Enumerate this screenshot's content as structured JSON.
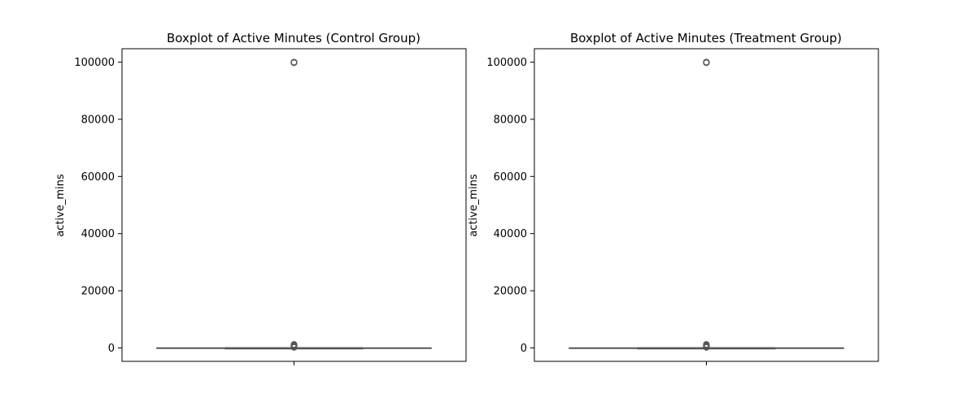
{
  "chart_data": [
    {
      "type": "box",
      "title": "Boxplot of Active Minutes (Control Group)",
      "xlabel": "",
      "ylabel": "active_mins",
      "ylim": [
        -4700,
        104700
      ],
      "yticks": [
        0,
        20000,
        40000,
        60000,
        80000,
        100000
      ],
      "ytick_labels": [
        "0",
        "20000",
        "40000",
        "60000",
        "80000",
        "100000"
      ],
      "box": {
        "q1": 0,
        "median": 0,
        "q3": 0,
        "whisker_low": 0,
        "whisker_high": 0
      },
      "outliers": [
        100000,
        99950,
        99900,
        99800,
        1200,
        1000,
        800,
        600,
        400,
        200
      ],
      "grid": false,
      "colors": {
        "box_edge": "#555555",
        "outlier_edge": "#555555",
        "axes": "#000000"
      }
    },
    {
      "type": "box",
      "title": "Boxplot of Active Minutes (Treatment Group)",
      "xlabel": "",
      "ylabel": "active_mins",
      "ylim": [
        -4700,
        104700
      ],
      "yticks": [
        0,
        20000,
        40000,
        60000,
        80000,
        100000
      ],
      "ytick_labels": [
        "0",
        "20000",
        "40000",
        "60000",
        "80000",
        "100000"
      ],
      "box": {
        "q1": 0,
        "median": 0,
        "q3": 0,
        "whisker_low": 0,
        "whisker_high": 0
      },
      "outliers": [
        100000,
        99950,
        99900,
        99800,
        1200,
        1000,
        800,
        600,
        400,
        200
      ],
      "grid": false,
      "colors": {
        "box_edge": "#555555",
        "outlier_edge": "#555555",
        "axes": "#000000"
      }
    }
  ]
}
